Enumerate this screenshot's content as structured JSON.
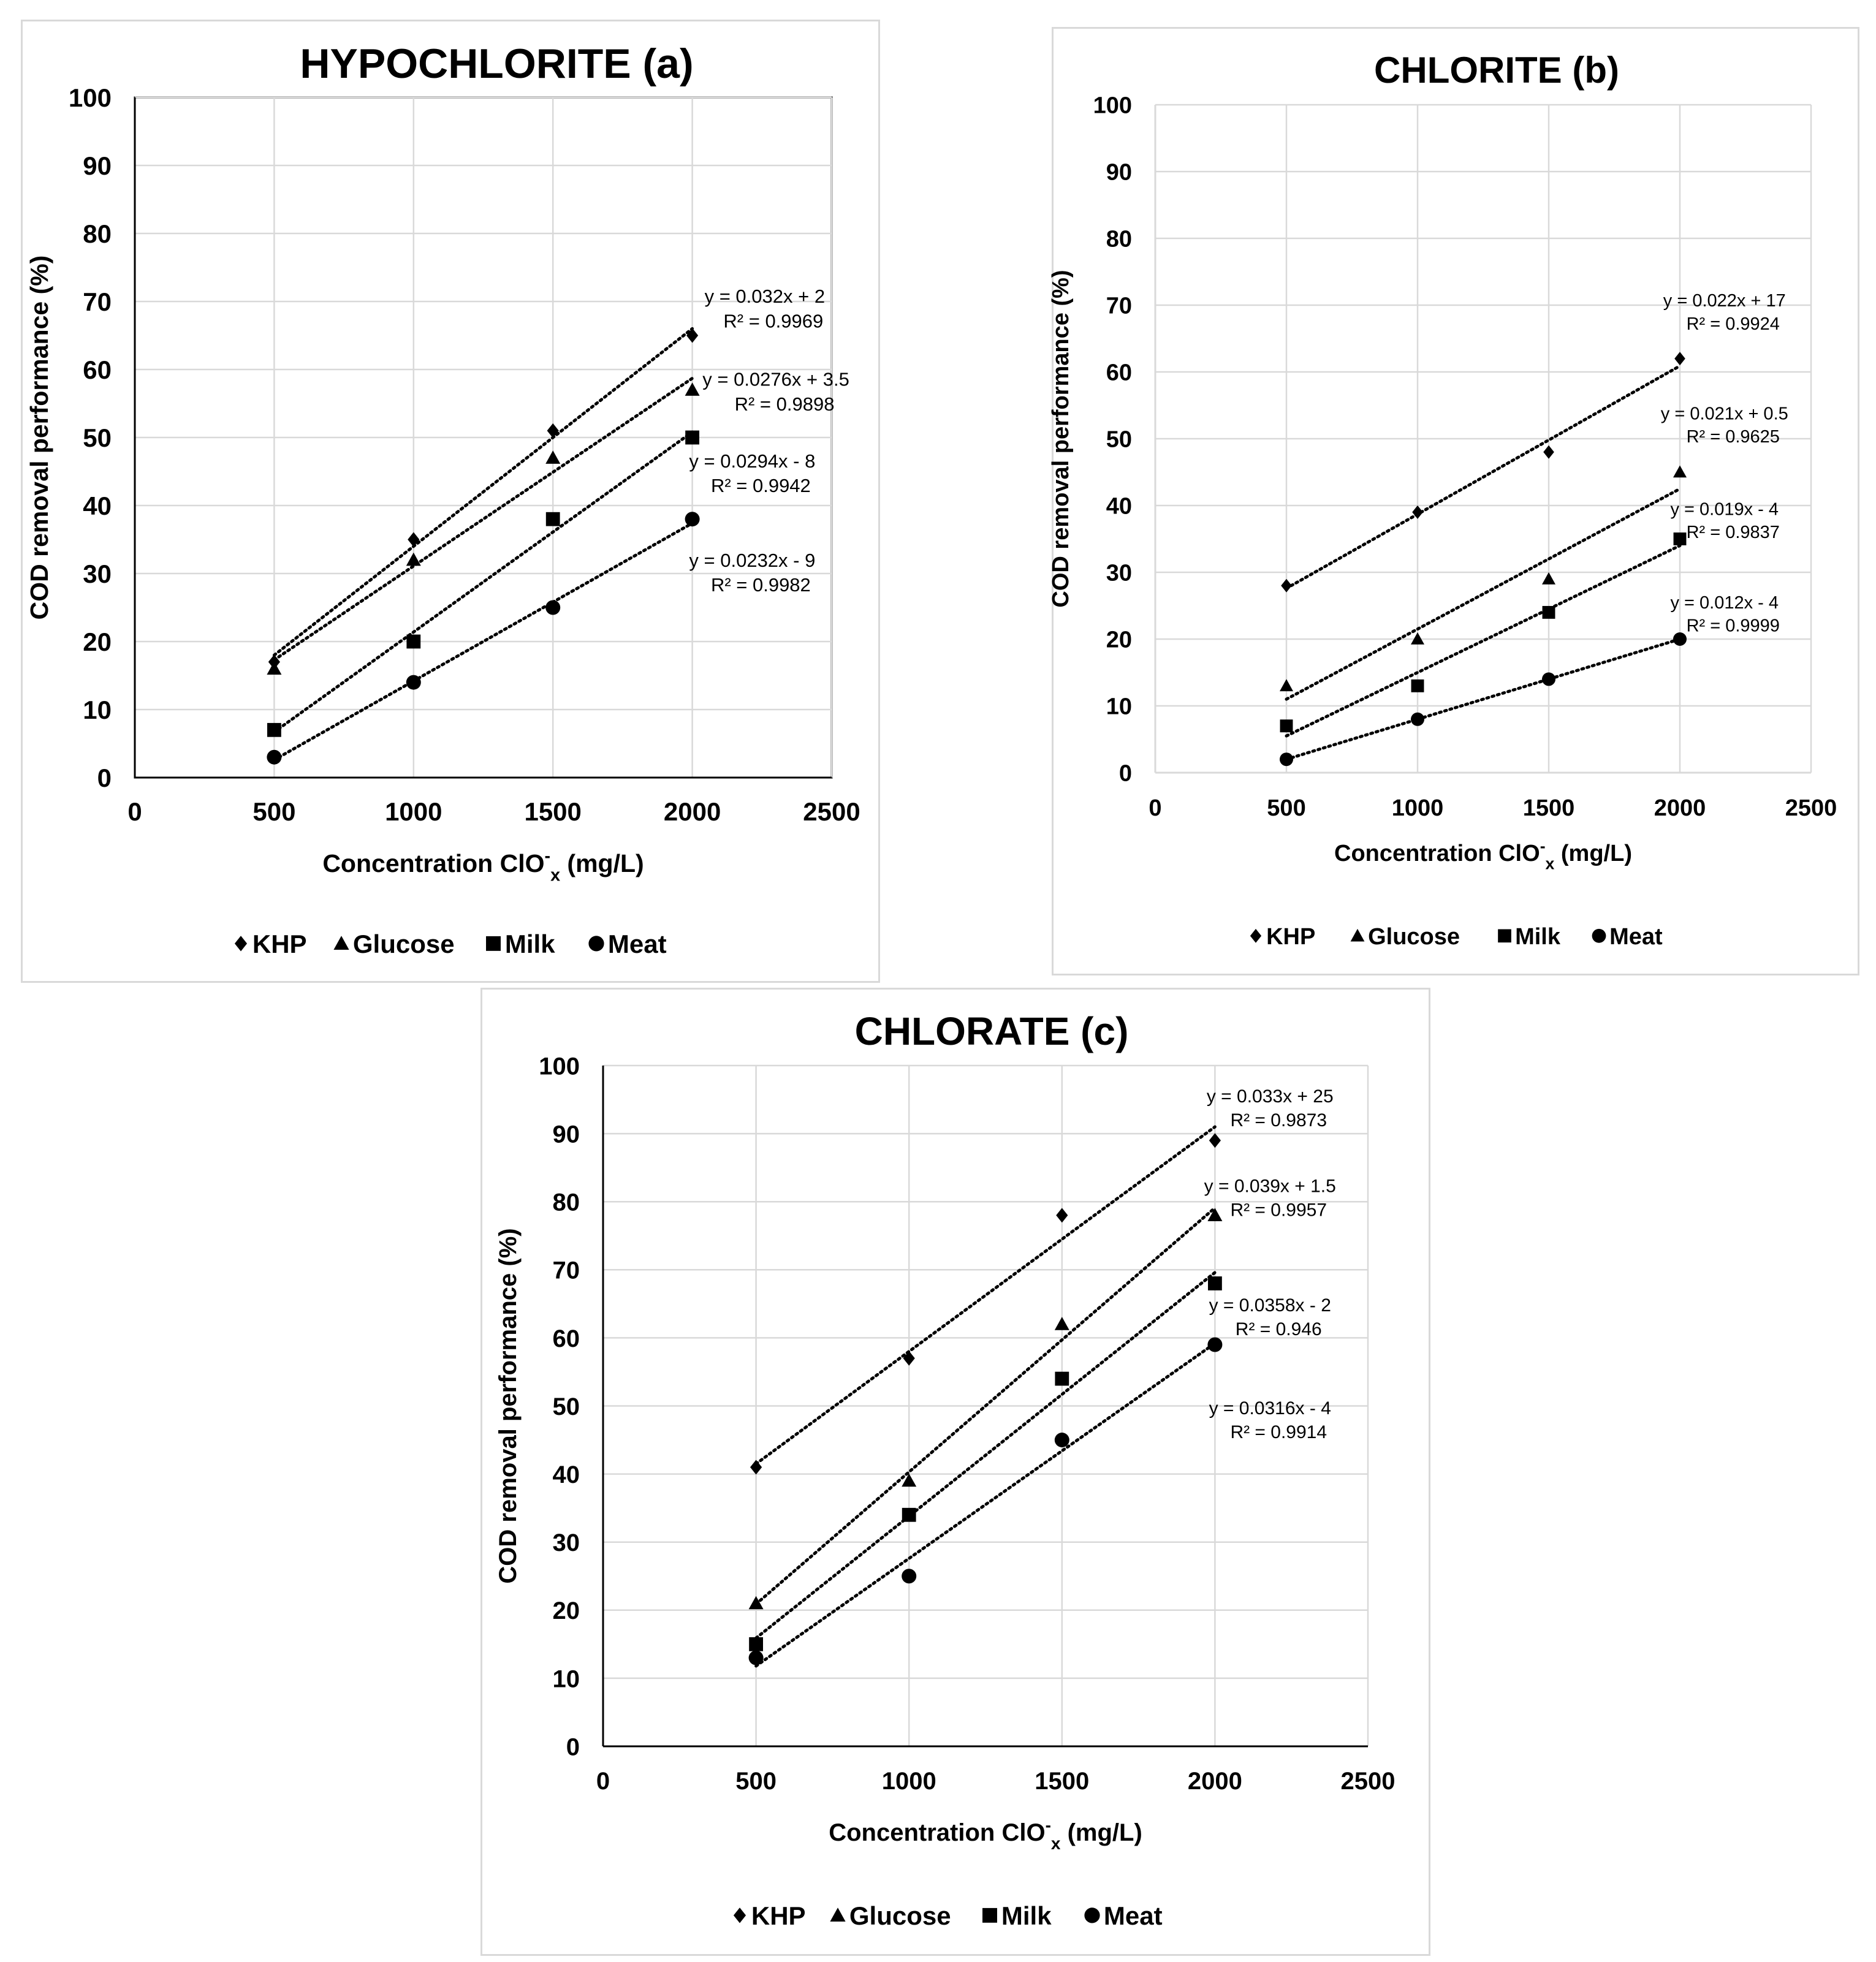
{
  "chart_data": [
    {
      "type": "scatter",
      "title": "HYPOCHLORITE (a)",
      "xlabel_main": "Concentration ClO",
      "xlabel_sup": "-",
      "xlabel_sub": "x",
      "xlabel_tail": " (mg/L)",
      "ylabel": "COD removal performance (%)",
      "xlim": [
        0,
        2500
      ],
      "ylim": [
        0,
        100
      ],
      "xticks": [
        0,
        500,
        1000,
        1500,
        2000,
        2500
      ],
      "yticks": [
        0,
        10,
        20,
        30,
        40,
        50,
        60,
        70,
        80,
        90,
        100
      ],
      "grid": true,
      "legend_position": "bottom",
      "x": [
        500,
        1000,
        1500,
        2000
      ],
      "series": [
        {
          "name": "KHP",
          "marker": "diamond",
          "values": [
            17,
            35,
            51,
            65
          ],
          "trend": {
            "equation": "y = 0.032x + 2",
            "r2": "R² = 0.9969"
          }
        },
        {
          "name": "Glucose",
          "marker": "triangle",
          "values": [
            16,
            32,
            47,
            57
          ],
          "trend": {
            "equation": "y = 0.0276x + 3.5",
            "r2": "R² = 0.9898"
          }
        },
        {
          "name": "Milk",
          "marker": "square",
          "values": [
            7,
            20,
            38,
            50
          ],
          "trend": {
            "equation": "y = 0.0294x - 8",
            "r2": "R² = 0.9942"
          }
        },
        {
          "name": "Meat",
          "marker": "circle",
          "values": [
            3,
            14,
            25,
            38
          ],
          "trend": {
            "equation": "y = 0.0232x - 9",
            "r2": "R² = 0.9982"
          }
        }
      ]
    },
    {
      "type": "scatter",
      "title": "CHLORITE (b)",
      "xlabel_main": "Concentration ClO",
      "xlabel_sup": "-",
      "xlabel_sub": "x",
      "xlabel_tail": " (mg/L)",
      "ylabel": "COD removal performance (%)",
      "xlim": [
        0,
        2500
      ],
      "ylim": [
        0,
        100
      ],
      "xticks": [
        0,
        500,
        1000,
        1500,
        2000,
        2500
      ],
      "yticks": [
        0,
        10,
        20,
        30,
        40,
        50,
        60,
        70,
        80,
        90,
        100
      ],
      "grid": true,
      "legend_position": "bottom",
      "x": [
        500,
        1000,
        1500,
        2000
      ],
      "series": [
        {
          "name": "KHP",
          "marker": "diamond",
          "values": [
            28,
            39,
            48,
            62
          ],
          "trend": {
            "equation": "y = 0.022x + 17",
            "r2": "R² = 0.9924"
          }
        },
        {
          "name": "Glucose",
          "marker": "triangle",
          "values": [
            13,
            20,
            29,
            45
          ],
          "trend": {
            "equation": "y = 0.021x + 0.5",
            "r2": "R² = 0.9625"
          }
        },
        {
          "name": "Milk",
          "marker": "square",
          "values": [
            7,
            13,
            24,
            35
          ],
          "trend": {
            "equation": "y = 0.019x - 4",
            "r2": "R² = 0.9837"
          }
        },
        {
          "name": "Meat",
          "marker": "circle",
          "values": [
            2,
            8,
            14,
            20
          ],
          "trend": {
            "equation": "y = 0.012x - 4",
            "r2": "R² = 0.9999"
          }
        }
      ]
    },
    {
      "type": "scatter",
      "title": "CHLORATE (c)",
      "xlabel_main": "Concentration ClO",
      "xlabel_sup": "-",
      "xlabel_sub": "x",
      "xlabel_tail": " (mg/L)",
      "ylabel": "COD removal performance (%)",
      "xlim": [
        0,
        2500
      ],
      "ylim": [
        0,
        100
      ],
      "xticks": [
        0,
        500,
        1000,
        1500,
        2000,
        2500
      ],
      "yticks": [
        0,
        10,
        20,
        30,
        40,
        50,
        60,
        70,
        80,
        90,
        100
      ],
      "grid": true,
      "legend_position": "bottom",
      "x": [
        500,
        1000,
        1500,
        2000
      ],
      "series": [
        {
          "name": "KHP",
          "marker": "diamond",
          "values": [
            41,
            57,
            78,
            89
          ],
          "trend": {
            "equation": "y = 0.033x + 25",
            "r2": "R² = 0.9873"
          }
        },
        {
          "name": "Glucose",
          "marker": "triangle",
          "values": [
            21,
            39,
            62,
            78
          ],
          "trend": {
            "equation": "y = 0.039x + 1.5",
            "r2": "R² = 0.9957"
          }
        },
        {
          "name": "Milk",
          "marker": "square",
          "values": [
            15,
            34,
            54,
            68
          ],
          "trend": {
            "equation": "y = 0.0358x - 2",
            "r2": "R² = 0.946"
          }
        },
        {
          "name": "Meat",
          "marker": "circle",
          "values": [
            13,
            25,
            45,
            59
          ],
          "trend": {
            "equation": "y = 0.0316x - 4",
            "r2": "R² = 0.9914"
          }
        }
      ]
    }
  ]
}
